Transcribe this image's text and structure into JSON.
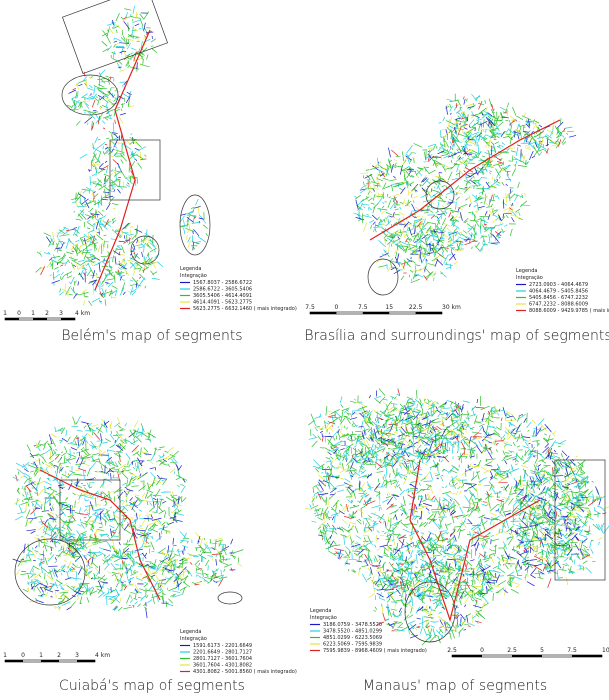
{
  "panels": [
    {
      "caption": "Belém's map of segments",
      "legend": {
        "title": "Legenda",
        "subtitle": "Integração",
        "entries": [
          "1567.8037 - 2586.6722",
          "2586.6722 - 3605.5406",
          "3605.5406 - 4614.4091",
          "4614.4091 - 5623.2775",
          "5623.2775 - 6632.1460 ( mais integrado)"
        ]
      },
      "scale": [
        "1",
        "0",
        "1",
        "2",
        "3",
        "4 km"
      ]
    },
    {
      "caption": "Brasília and surroundings' map of segments",
      "legend": {
        "title": "Legenda",
        "subtitle": "Integração",
        "entries": [
          "2723.0903 - 4064.4679",
          "4064.4679 - 5405.8456",
          "5405.8456 - 6747.2232",
          "6747.2232 - 8088.6009",
          "8088.6009 - 9429.9785 ( mais integrado)"
        ]
      },
      "scale": [
        "7.5",
        "0",
        "7.5",
        "15",
        "22.5",
        "30 km"
      ]
    },
    {
      "caption": "Cuiabá's map of segments",
      "legend": {
        "title": "Legenda",
        "subtitle": "Integração",
        "entries": [
          "1591.6173 - 2201.6649",
          "2201.6649 - 2801.7127",
          "2801.7127 - 3601.7604",
          "3601.7604 - 4301.8082",
          "4301.8082 - 5001.8560 ( mais integrado)"
        ]
      },
      "scale": [
        "1",
        "0",
        "1",
        "2",
        "3",
        "4 km"
      ]
    },
    {
      "caption": "Manaus' map of segments",
      "legend": {
        "title": "Legenda",
        "subtitle": "Integração",
        "entries": [
          "3186.0759 - 3478.5520",
          "3478.5520 - 4851.0299",
          "4851.0299 - 6223.5069",
          "6223.5069 - 7595.9839",
          "7595.9839 - 8968.4609 ( mais integrado)"
        ]
      },
      "scale": [
        "2.5",
        "0",
        "2.5",
        "5",
        "7.5",
        "10 km"
      ]
    }
  ]
}
